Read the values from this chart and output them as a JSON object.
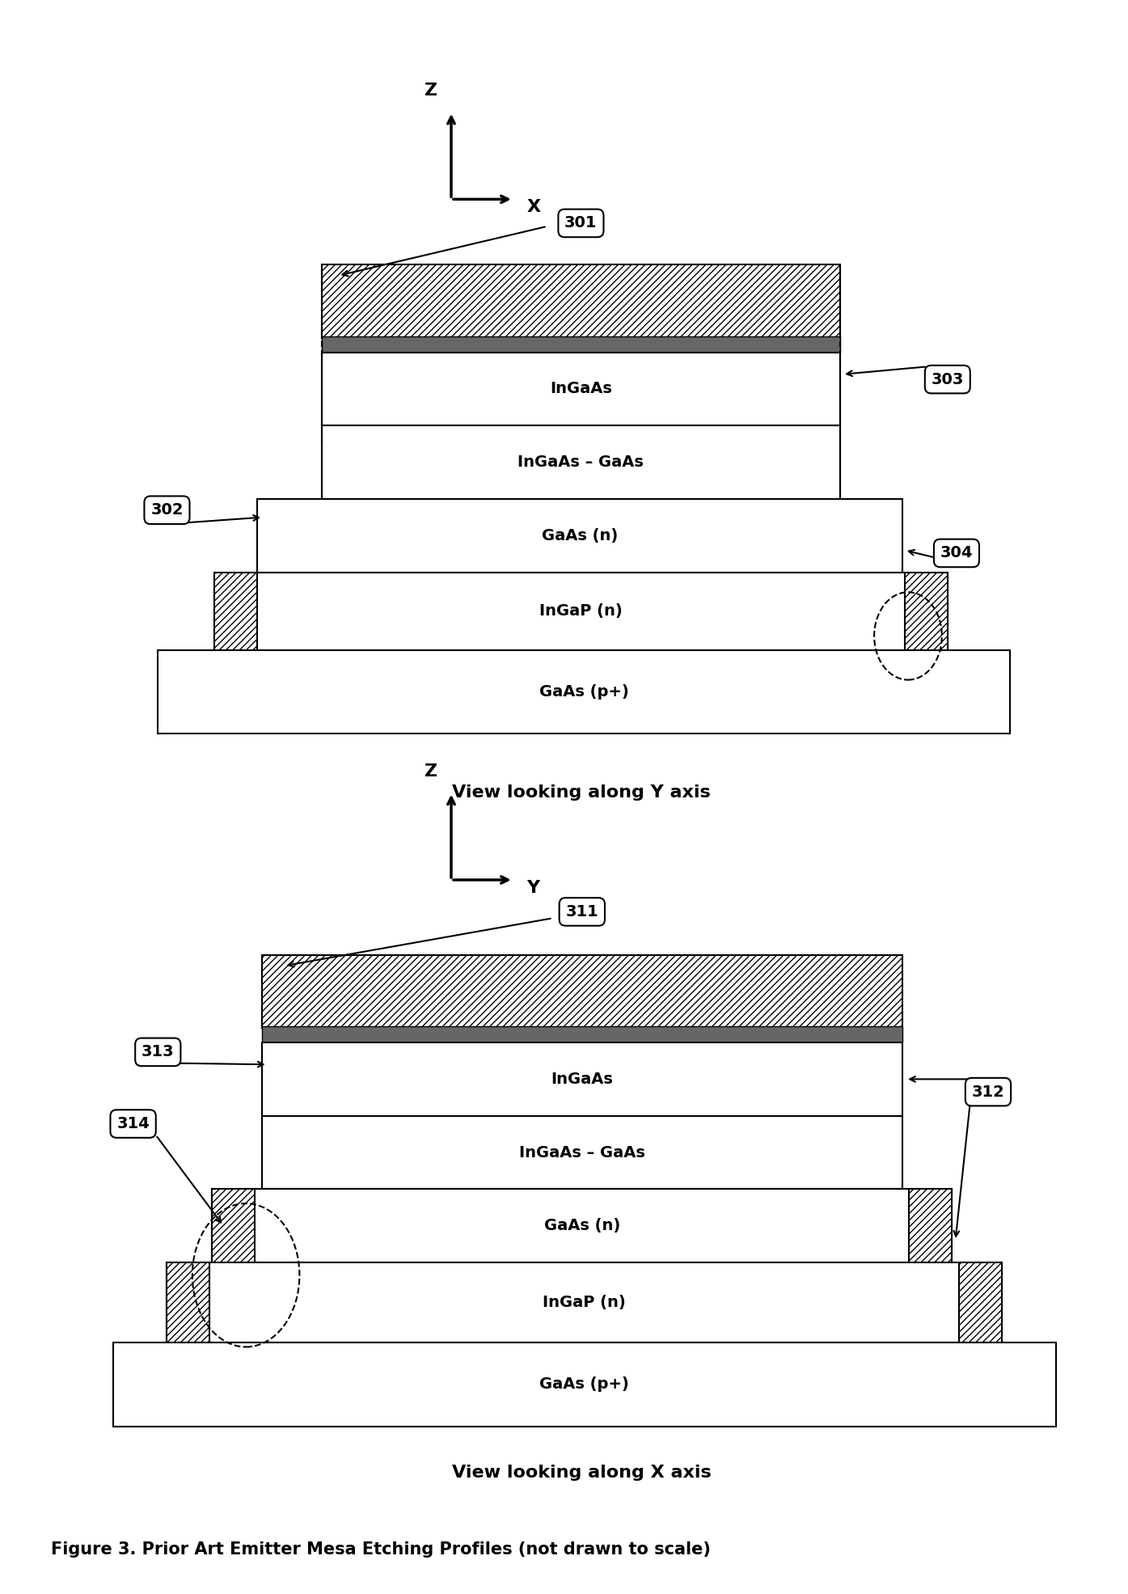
{
  "bg_color": "#ffffff",
  "fig_caption": "Figure 3. Prior Art Emitter Mesa Etching Profiles (not drawn to scale)",
  "view1_caption": "View looking along Y axis",
  "view2_caption": "View looking along X axis"
}
